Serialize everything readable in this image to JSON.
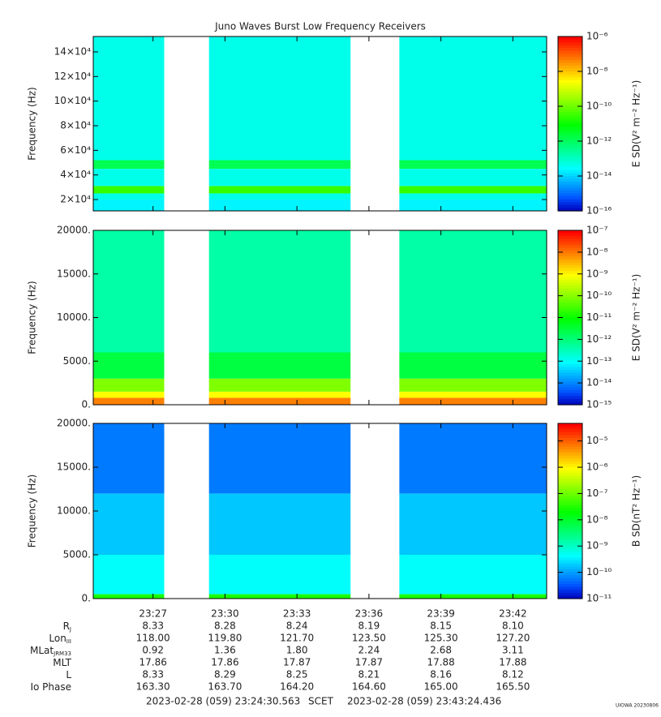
{
  "chart_data": {
    "type": "spectrogram",
    "title": "Juno Waves Burst Low Frequency Receivers",
    "xlim": [
      84270.563,
      85404.436
    ],
    "xticks": [
      {
        "value": 84420,
        "label": "23:27"
      },
      {
        "value": 84600,
        "label": "23:30"
      },
      {
        "value": 84780,
        "label": "23:33"
      },
      {
        "value": 84960,
        "label": "23:36"
      },
      {
        "value": 85140,
        "label": "23:39"
      },
      {
        "value": 85320,
        "label": "23:42"
      }
    ],
    "gaps": [
      [
        84448,
        84560
      ],
      [
        84914,
        85036
      ]
    ],
    "panels": [
      {
        "ylabel": "Frequency (Hz)",
        "ylim": [
          10800,
          152500
        ],
        "yticks": [
          {
            "value": 20000,
            "label": "2×10⁴"
          },
          {
            "value": 40000,
            "label": "4×10⁴"
          },
          {
            "value": 60000,
            "label": "6×10⁴"
          },
          {
            "value": 80000,
            "label": "8×10⁴"
          },
          {
            "value": 100000,
            "label": "10×10⁴"
          },
          {
            "value": 120000,
            "label": "12×10⁴"
          },
          {
            "value": 140000,
            "label": "14×10⁴"
          }
        ],
        "band_lo": [
          10800,
          20000,
          25000,
          31000,
          45000,
          52000
        ],
        "band_hi": [
          20000,
          25000,
          31000,
          45000,
          52000,
          152500
        ],
        "values": [
          -13.6,
          -13.3,
          -10.5,
          -13.3,
          -11.8,
          -13.3
        ],
        "cbar_label": "E SD(V² m⁻² Hz⁻¹)",
        "clim": [
          -16,
          -6
        ],
        "cticks": [
          {
            "value": -16,
            "label": "10⁻¹⁶"
          },
          {
            "value": -14,
            "label": "10⁻¹⁴"
          },
          {
            "value": -12,
            "label": "10⁻¹²"
          },
          {
            "value": -10,
            "label": "10⁻¹⁰"
          },
          {
            "value": -8,
            "label": "10⁻⁸"
          },
          {
            "value": -6,
            "label": "10⁻⁶"
          }
        ]
      },
      {
        "ylabel": "Frequency (Hz)",
        "ylim": [
          0,
          20000
        ],
        "yticks": [
          {
            "value": 0,
            "label": "0."
          },
          {
            "value": 5000,
            "label": "5000."
          },
          {
            "value": 10000,
            "label": "10000."
          },
          {
            "value": 15000,
            "label": "15000."
          },
          {
            "value": 20000,
            "label": "20000."
          }
        ],
        "band_lo": [
          0,
          800,
          1500,
          3000,
          6000
        ],
        "band_hi": [
          800,
          1500,
          3000,
          6000,
          20000
        ],
        "values": [
          -8,
          -9,
          -10,
          -11.5,
          -12.3
        ],
        "cbar_label": "E SD(V² m⁻² Hz⁻¹)",
        "clim": [
          -15,
          -7
        ],
        "cticks": [
          {
            "value": -15,
            "label": "10⁻¹⁵"
          },
          {
            "value": -14,
            "label": "10⁻¹⁴"
          },
          {
            "value": -13,
            "label": "10⁻¹³"
          },
          {
            "value": -12,
            "label": "10⁻¹²"
          },
          {
            "value": -11,
            "label": "10⁻¹¹"
          },
          {
            "value": -10,
            "label": "10⁻¹⁰"
          },
          {
            "value": -9,
            "label": "10⁻⁹"
          },
          {
            "value": -8,
            "label": "10⁻⁸"
          },
          {
            "value": -7,
            "label": "10⁻⁷"
          }
        ]
      },
      {
        "ylabel": "Frequency (Hz)",
        "ylim": [
          0,
          20000
        ],
        "yticks": [
          {
            "value": 0,
            "label": "0."
          },
          {
            "value": 5000,
            "label": "5000."
          },
          {
            "value": 10000,
            "label": "10000."
          },
          {
            "value": 15000,
            "label": "15000."
          },
          {
            "value": 20000,
            "label": "20000."
          }
        ],
        "band_lo": [
          0,
          500,
          5000,
          12000
        ],
        "band_hi": [
          500,
          5000,
          12000,
          20000
        ],
        "values": [
          -7.5,
          -9.3,
          -9.7,
          -10.2
        ],
        "cbar_label": "B SD(nT² Hz⁻¹)",
        "clim": [
          -11,
          -4.33
        ],
        "cticks": [
          {
            "value": -11,
            "label": "10⁻¹¹"
          },
          {
            "value": -10,
            "label": "10⁻¹⁰"
          },
          {
            "value": -9,
            "label": "10⁻⁹"
          },
          {
            "value": -8,
            "label": "10⁻⁸"
          },
          {
            "value": -7,
            "label": "10⁻⁷"
          },
          {
            "value": -6,
            "label": "10⁻⁶"
          },
          {
            "value": -5,
            "label": "10⁻⁵"
          }
        ]
      }
    ],
    "ephemeris": [
      {
        "label": "R",
        "sub": "J",
        "values": [
          "8.33",
          "8.28",
          "8.24",
          "8.19",
          "8.15",
          "8.10"
        ]
      },
      {
        "label": "Lon",
        "sub": "III",
        "values": [
          "118.00",
          "119.80",
          "121.70",
          "123.50",
          "125.30",
          "127.20"
        ]
      },
      {
        "label": "MLat",
        "sub": "JRM33",
        "values": [
          "0.92",
          "1.36",
          "1.80",
          "2.24",
          "2.68",
          "3.11"
        ]
      },
      {
        "label": "MLT",
        "values": [
          "17.86",
          "17.86",
          "17.87",
          "17.87",
          "17.88",
          "17.88"
        ]
      },
      {
        "label": "L",
        "values": [
          "8.33",
          "8.29",
          "8.25",
          "8.21",
          "8.16",
          "8.12"
        ]
      },
      {
        "label": "Io Phase",
        "values": [
          "163.30",
          "163.70",
          "164.20",
          "164.60",
          "165.00",
          "165.50"
        ]
      }
    ],
    "start_time": "2023-02-28 (059) 23:24:30.563",
    "time_label": "SCET",
    "end_time": "2023-02-28 (059) 23:43:24.436",
    "credit": "UIOWA 20230806"
  }
}
